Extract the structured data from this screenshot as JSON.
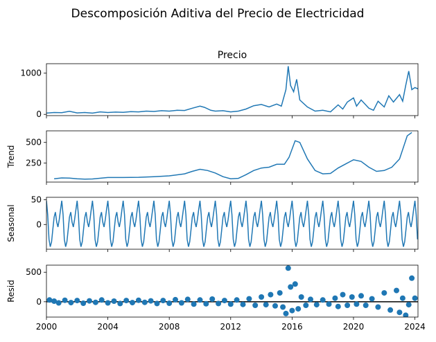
{
  "figure": {
    "suptitle": "Descomposición Aditiva del Precio de Electricidad"
  },
  "colors": {
    "line": "#1f77b4",
    "marker": "#1f77b4",
    "zero_line": "#000000",
    "axes": "#000000"
  },
  "chart_data": [
    {
      "type": "line",
      "name": "precio",
      "title": "Precio",
      "ylabel": "",
      "ylim": [
        -30,
        1230
      ],
      "yticks": [
        0,
        1000
      ],
      "xlim": [
        2000,
        2024.2
      ],
      "x": [
        2000,
        2000.5,
        2001,
        2001.5,
        2002,
        2002.5,
        2003,
        2003.5,
        2004,
        2004.5,
        2005,
        2005.5,
        2006,
        2006.5,
        2007,
        2007.5,
        2008,
        2008.5,
        2009,
        2009.5,
        2010,
        2010.3,
        2010.7,
        2011,
        2011.5,
        2012,
        2012.5,
        2013,
        2013.5,
        2014,
        2014.5,
        2015,
        2015.3,
        2015.6,
        2015.75,
        2015.9,
        2016.1,
        2016.3,
        2016.5,
        2017,
        2017.5,
        2018,
        2018.5,
        2019,
        2019.3,
        2019.6,
        2020,
        2020.2,
        2020.5,
        2021,
        2021.3,
        2021.6,
        2022,
        2022.3,
        2022.6,
        2023,
        2023.2,
        2023.4,
        2023.6,
        2023.8,
        2024,
        2024.2
      ],
      "y": [
        30,
        45,
        40,
        75,
        35,
        45,
        30,
        60,
        45,
        55,
        50,
        65,
        60,
        80,
        70,
        90,
        80,
        100,
        95,
        150,
        200,
        170,
        100,
        80,
        90,
        60,
        80,
        130,
        210,
        240,
        180,
        250,
        200,
        600,
        1170,
        700,
        550,
        850,
        350,
        180,
        80,
        100,
        60,
        230,
        130,
        300,
        400,
        200,
        350,
        150,
        100,
        320,
        180,
        450,
        300,
        480,
        320,
        700,
        1050,
        600,
        650,
        620
      ]
    },
    {
      "type": "line",
      "name": "trend",
      "title": "",
      "ylabel": "Trend",
      "ylim": [
        20,
        640
      ],
      "yticks": [
        250,
        500
      ],
      "xlim": [
        2000,
        2024.2
      ],
      "x": [
        2000.5,
        2001,
        2001.5,
        2002,
        2002.5,
        2003,
        2004,
        2005,
        2006,
        2007,
        2008,
        2009,
        2009.5,
        2010,
        2010.5,
        2011,
        2011.5,
        2012,
        2012.5,
        2013,
        2013.5,
        2014,
        2014.5,
        2015,
        2015.2,
        2015.5,
        2015.8,
        2016.2,
        2016.5,
        2017,
        2017.5,
        2018,
        2018.5,
        2019,
        2019.5,
        2020,
        2020.5,
        2021,
        2021.5,
        2022,
        2022.5,
        2023,
        2023.5,
        2023.8
      ],
      "y": [
        60,
        70,
        68,
        60,
        55,
        58,
        75,
        75,
        78,
        85,
        95,
        120,
        150,
        175,
        160,
        130,
        85,
        60,
        65,
        110,
        160,
        190,
        200,
        235,
        235,
        235,
        320,
        520,
        500,
        300,
        160,
        120,
        125,
        190,
        240,
        290,
        270,
        200,
        150,
        160,
        200,
        300,
        580,
        620
      ]
    },
    {
      "type": "line",
      "name": "seasonal",
      "title": "",
      "ylabel": "Seasonal",
      "ylim": [
        -50,
        55
      ],
      "yticks": [
        0,
        50
      ],
      "xlim": [
        2000,
        2024.2
      ],
      "x": [],
      "y": [],
      "period": 1.0,
      "pattern": [
        48,
        20,
        -30,
        -45,
        -35,
        -10,
        15,
        25,
        5,
        -5,
        10,
        30
      ]
    },
    {
      "type": "scatter",
      "name": "resid",
      "title": "",
      "ylabel": "Resid",
      "xlabel": "",
      "ylim": [
        -260,
        620
      ],
      "yticks": [
        0,
        500
      ],
      "xlim": [
        2000,
        2024.2
      ],
      "xticks": [
        2000,
        2004,
        2008,
        2012,
        2016,
        2020,
        2024
      ],
      "x": [
        2000.2,
        2000.5,
        2000.8,
        2001.2,
        2001.6,
        2002.0,
        2002.4,
        2002.8,
        2003.2,
        2003.6,
        2004.0,
        2004.4,
        2004.8,
        2005.2,
        2005.6,
        2006.0,
        2006.4,
        2006.8,
        2007.2,
        2007.6,
        2008.0,
        2008.4,
        2008.8,
        2009.2,
        2009.6,
        2010.0,
        2010.4,
        2010.8,
        2011.2,
        2011.6,
        2012.0,
        2012.4,
        2012.8,
        2013.2,
        2013.6,
        2014.0,
        2014.3,
        2014.6,
        2014.9,
        2015.2,
        2015.4,
        2015.6,
        2015.75,
        2015.9,
        2016.0,
        2016.2,
        2016.4,
        2016.6,
        2016.9,
        2017.2,
        2017.6,
        2018.0,
        2018.4,
        2018.8,
        2019.0,
        2019.3,
        2019.6,
        2019.9,
        2020.2,
        2020.5,
        2020.8,
        2021.2,
        2021.6,
        2022.0,
        2022.4,
        2022.8,
        2023.0,
        2023.2,
        2023.4,
        2023.6,
        2023.8,
        2024.0
      ],
      "y": [
        30,
        10,
        -20,
        25,
        -15,
        20,
        -25,
        15,
        -10,
        30,
        -20,
        10,
        -30,
        20,
        -15,
        25,
        -10,
        15,
        -30,
        20,
        -25,
        35,
        -20,
        40,
        -40,
        30,
        -35,
        45,
        -30,
        20,
        -40,
        30,
        -45,
        50,
        -60,
        80,
        -50,
        120,
        -70,
        150,
        -90,
        -200,
        570,
        250,
        -150,
        300,
        -120,
        80,
        -60,
        40,
        -50,
        30,
        -40,
        60,
        -80,
        120,
        -60,
        80,
        -40,
        100,
        -60,
        50,
        -90,
        150,
        -140,
        190,
        -180,
        60,
        -230,
        -50,
        400,
        60
      ]
    }
  ]
}
